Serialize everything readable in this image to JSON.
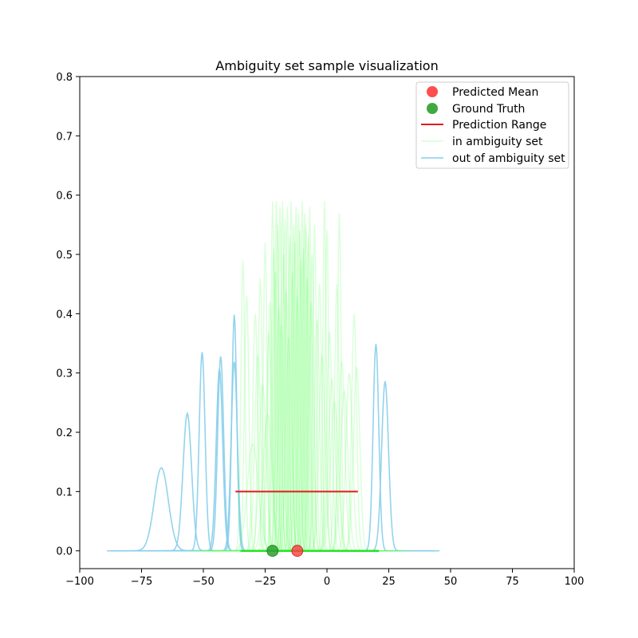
{
  "chart_data": {
    "type": "line",
    "title": "Ambiguity set sample visualization",
    "xlabel": "",
    "ylabel": "",
    "xlim": [
      -100,
      100
    ],
    "ylim": [
      -0.03,
      0.8
    ],
    "xticks": [
      -100,
      -75,
      -50,
      -25,
      0,
      25,
      50,
      75,
      100
    ],
    "xtick_labels": [
      "−100",
      "−75",
      "−50",
      "−25",
      "0",
      "25",
      "50",
      "75",
      "100"
    ],
    "yticks": [
      0.0,
      0.1,
      0.2,
      0.3,
      0.4,
      0.5,
      0.6,
      0.7,
      0.8
    ],
    "ytick_labels": [
      "0.0",
      "0.1",
      "0.2",
      "0.3",
      "0.4",
      "0.5",
      "0.6",
      "0.7",
      "0.8"
    ],
    "grid": false,
    "legend_position": "upper right",
    "legend": {
      "predicted_mean": "Predicted Mean",
      "ground_truth": "Ground Truth",
      "prediction_range": "Prediction Range",
      "in_set": "in ambiguity set",
      "out_set": "out of ambiguity set"
    },
    "colors": {
      "predicted_mean": "#ff3b3b",
      "ground_truth": "#2ca02c",
      "prediction_range": "#e31a1c",
      "in_set": "#5cff5c",
      "out_set": "#87ceeb"
    },
    "predicted_mean": {
      "x": -12,
      "y": 0.0
    },
    "ground_truth": {
      "x": -22,
      "y": 0.0
    },
    "prediction_range": {
      "x_start": -37,
      "x_end": 12.5,
      "y": 0.1
    },
    "out_of_ambiguity_set": [
      {
        "mean": -67,
        "peak": 0.14
      },
      {
        "mean": -56.5,
        "peak": 0.232
      },
      {
        "mean": -50.5,
        "peak": 0.335
      },
      {
        "mean": -43.5,
        "peak": 0.307
      },
      {
        "mean": -43,
        "peak": 0.328
      },
      {
        "mean": -37.5,
        "peak": 0.398
      },
      {
        "mean": -37.5,
        "peak": 0.319
      },
      {
        "mean": 19.8,
        "peak": 0.349
      },
      {
        "mean": 23.5,
        "peak": 0.286
      }
    ],
    "in_ambiguity_set": [
      {
        "mean": -34,
        "peak": 0.49
      },
      {
        "mean": -32.5,
        "peak": 0.43
      },
      {
        "mean": -30,
        "peak": 0.18
      },
      {
        "mean": -29,
        "peak": 0.4
      },
      {
        "mean": -28,
        "peak": 0.33
      },
      {
        "mean": -27,
        "peak": 0.46
      },
      {
        "mean": -26,
        "peak": 0.28
      },
      {
        "mean": -25,
        "peak": 0.52
      },
      {
        "mean": -24,
        "peak": 0.23
      },
      {
        "mean": -23.5,
        "peak": 0.37
      },
      {
        "mean": -23,
        "peak": 0.42
      },
      {
        "mean": -22,
        "peak": 0.59
      },
      {
        "mean": -21.5,
        "peak": 0.51
      },
      {
        "mean": -21,
        "peak": 0.47
      },
      {
        "mean": -20.5,
        "peak": 0.59
      },
      {
        "mean": -20,
        "peak": 0.55
      },
      {
        "mean": -19.5,
        "peak": 0.41
      },
      {
        "mean": -19,
        "peak": 0.58
      },
      {
        "mean": -18.5,
        "peak": 0.38
      },
      {
        "mean": -18,
        "peak": 0.59
      },
      {
        "mean": -17.5,
        "peak": 0.5
      },
      {
        "mean": -17,
        "peak": 0.56
      },
      {
        "mean": -16.5,
        "peak": 0.44
      },
      {
        "mean": -16,
        "peak": 0.58
      },
      {
        "mean": -15.5,
        "peak": 0.36
      },
      {
        "mean": -15,
        "peak": 0.53
      },
      {
        "mean": -14.5,
        "peak": 0.59
      },
      {
        "mean": -14,
        "peak": 0.47
      },
      {
        "mean": -13.5,
        "peak": 0.55
      },
      {
        "mean": -13,
        "peak": 0.52
      },
      {
        "mean": -12.5,
        "peak": 0.58
      },
      {
        "mean": -12,
        "peak": 0.43
      },
      {
        "mean": -11.5,
        "peak": 0.57
      },
      {
        "mean": -11,
        "peak": 0.54
      },
      {
        "mean": -10.5,
        "peak": 0.49
      },
      {
        "mean": -10,
        "peak": 0.59
      },
      {
        "mean": -9.5,
        "peak": 0.51
      },
      {
        "mean": -9,
        "peak": 0.57
      },
      {
        "mean": -8.5,
        "peak": 0.55
      },
      {
        "mean": -8,
        "peak": 0.46
      },
      {
        "mean": -7.5,
        "peak": 0.53
      },
      {
        "mean": -7,
        "peak": 0.58
      },
      {
        "mean": -6.5,
        "peak": 0.42
      },
      {
        "mean": -6,
        "peak": 0.5
      },
      {
        "mean": -5,
        "peak": 0.55
      },
      {
        "mean": -4,
        "peak": 0.39
      },
      {
        "mean": -3,
        "peak": 0.45
      },
      {
        "mean": -2,
        "peak": 0.33
      },
      {
        "mean": -1,
        "peak": 0.59
      },
      {
        "mean": 0,
        "peak": 0.54
      },
      {
        "mean": 1,
        "peak": 0.37
      },
      {
        "mean": 2,
        "peak": 0.29
      },
      {
        "mean": 3,
        "peak": 0.25
      },
      {
        "mean": 4,
        "peak": 0.45
      },
      {
        "mean": 5,
        "peak": 0.57
      },
      {
        "mean": 6,
        "peak": 0.32
      },
      {
        "mean": 7,
        "peak": 0.27
      },
      {
        "mean": 9,
        "peak": 0.3
      },
      {
        "mean": 11,
        "peak": 0.4
      },
      {
        "mean": 12,
        "peak": 0.31
      }
    ]
  }
}
